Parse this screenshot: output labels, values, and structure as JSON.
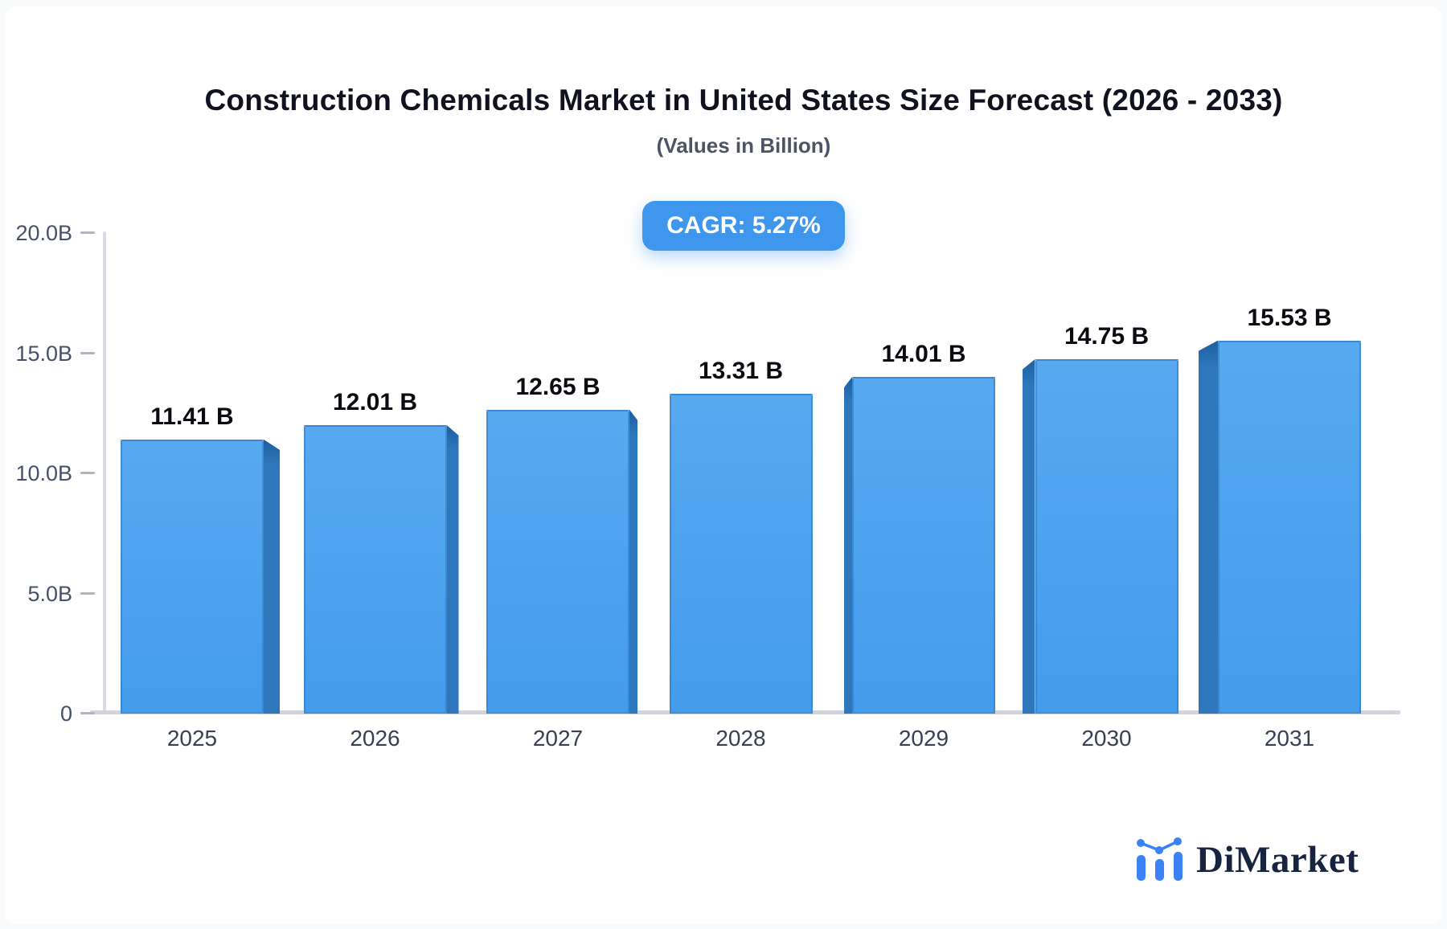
{
  "page": {
    "background": "#f8fafc",
    "card_background": "#ffffff"
  },
  "header": {
    "title": "Construction Chemicals Market in United States Size Forecast (2026 - 2033)",
    "subtitle": "(Values in Billion)",
    "cagr_badge": "CAGR: 5.27%",
    "badge_color": "#3f96ed"
  },
  "chart_data": {
    "type": "bar",
    "title": "Construction Chemicals Market in United States Size Forecast (2026 - 2033)",
    "subtitle": "(Values in Billion)",
    "cagr_percent": 5.27,
    "categories": [
      "2025",
      "2026",
      "2027",
      "2028",
      "2029",
      "2030",
      "2031"
    ],
    "values": [
      11.41,
      12.01,
      12.65,
      13.31,
      14.01,
      14.75,
      15.53
    ],
    "value_labels": [
      "11.41 B",
      "12.01 B",
      "12.65 B",
      "13.31 B",
      "14.01 B",
      "14.75 B",
      "15.53 B"
    ],
    "ylim": [
      0,
      20
    ],
    "yticks": [
      {
        "value": 20,
        "label": "20.0B"
      },
      {
        "value": 15,
        "label": "15.0B"
      },
      {
        "value": 10,
        "label": "10.0B"
      },
      {
        "value": 5,
        "label": "5.0B"
      },
      {
        "value": 0,
        "label": "0"
      }
    ],
    "grid": false,
    "legend": false,
    "bar_style": "pseudo-3d",
    "colors": {
      "face_top": "#57a9f0",
      "face_bottom": "#449ced",
      "face_border": "#3a87d4",
      "side": "#2e77bc",
      "side_shadow": "#1d5f9f"
    }
  },
  "footer": {
    "logo_text": "DiMarket",
    "logo_icon": "bar-chart-logo-icon",
    "logo_accent": "#3b82f6",
    "logo_text_color": "#172440"
  }
}
